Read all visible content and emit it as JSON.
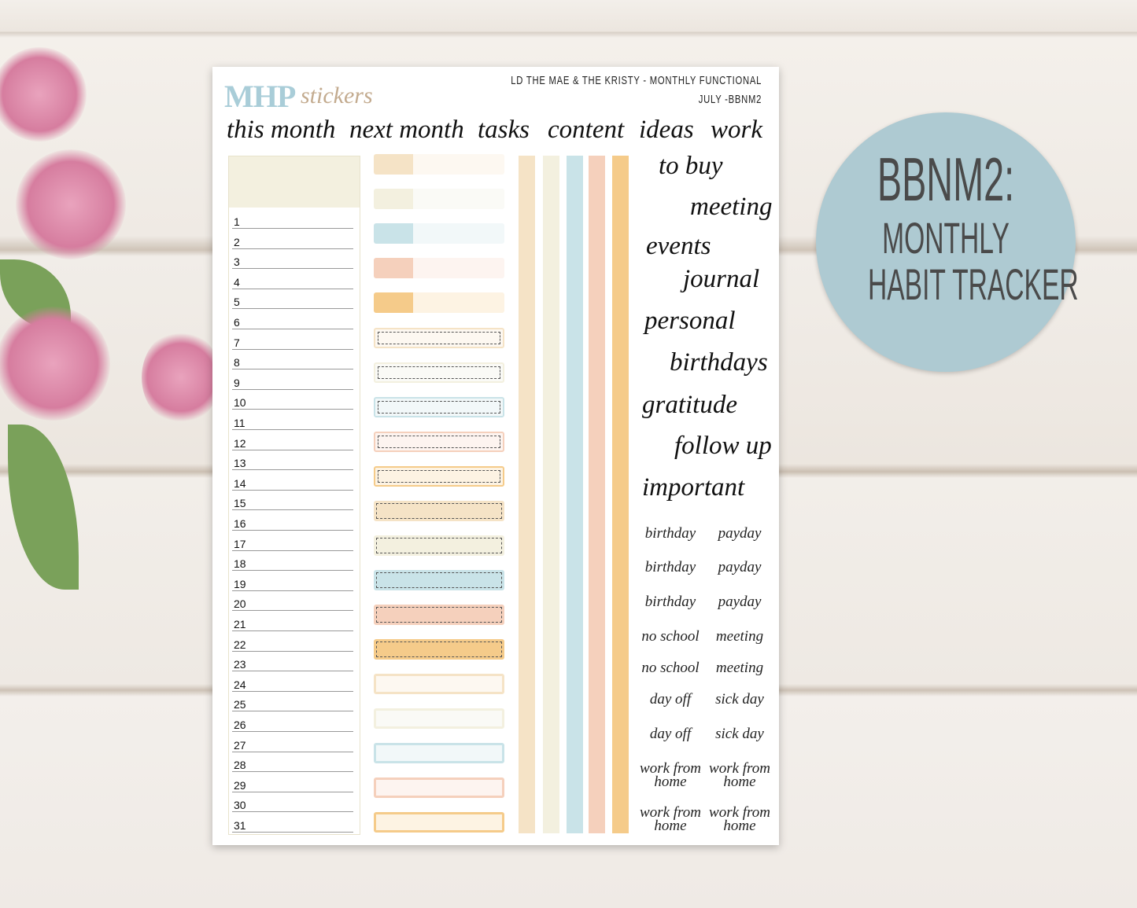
{
  "logo": {
    "brand": "MHP",
    "script": "stickers"
  },
  "header": {
    "line1": "LD THE MAE & THE KRISTY - MONTHLY FUNCTIONAL",
    "line2": "JULY -BBNM2"
  },
  "headings": [
    "this month",
    "next month",
    "tasks",
    "content",
    "ideas",
    "work"
  ],
  "words": [
    "to buy",
    "meeting",
    "events",
    "journal",
    "personal",
    "birthdays",
    "gratitude",
    "follow up",
    "important"
  ],
  "small_stickers": [
    [
      "birthday",
      "payday"
    ],
    [
      "birthday",
      "payday"
    ],
    [
      "birthday",
      "payday"
    ],
    [
      "no school",
      "meeting"
    ],
    [
      "no school",
      "meeting"
    ],
    [
      "day off",
      "sick day"
    ],
    [
      "day off",
      "sick day"
    ],
    [
      "work from home",
      "work from home"
    ],
    [
      "work from home",
      "work from home"
    ]
  ],
  "days": [
    "1",
    "2",
    "3",
    "4",
    "5",
    "6",
    "7",
    "8",
    "9",
    "10",
    "11",
    "12",
    "13",
    "14",
    "15",
    "16",
    "17",
    "18",
    "19",
    "20",
    "21",
    "22",
    "23",
    "24",
    "25",
    "26",
    "27",
    "28",
    "29",
    "30",
    "31"
  ],
  "colors": {
    "tan": "#f5e3c6",
    "cream": "#f3f0df",
    "blue": "#c9e3e8",
    "peach": "#f5d0bc",
    "orange": "#f5cb8a"
  },
  "badge": {
    "line1": "BBNM2:",
    "line2": "MONTHLY",
    "line3": "HABIT TRACKER"
  }
}
